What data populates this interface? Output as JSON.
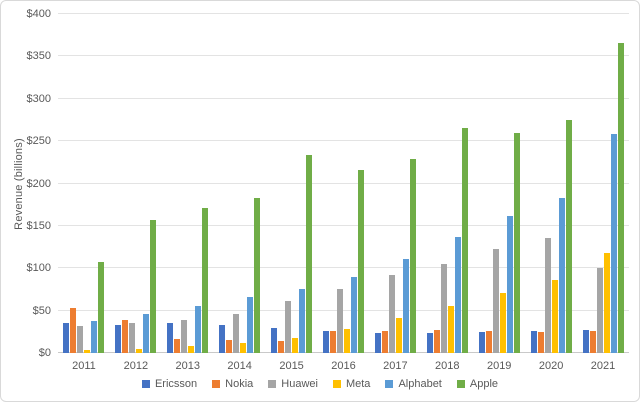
{
  "chart_data": {
    "type": "bar",
    "title": "",
    "ylabel": "Revenue (billions)",
    "xlabel": "",
    "categories": [
      "2011",
      "2012",
      "2013",
      "2014",
      "2015",
      "2016",
      "2017",
      "2018",
      "2019",
      "2020",
      "2021"
    ],
    "series": [
      {
        "name": "Ericsson",
        "color": "#4472C4",
        "values": [
          35,
          33,
          35,
          33,
          29,
          26,
          24,
          24,
          25,
          26,
          27
        ]
      },
      {
        "name": "Nokia",
        "color": "#ED7D31",
        "values": [
          53,
          39,
          16,
          15,
          14,
          26,
          26,
          27,
          26,
          25,
          26
        ]
      },
      {
        "name": "Huawei",
        "color": "#A5A5A5",
        "values": [
          32,
          35,
          39,
          46,
          61,
          75,
          92,
          105,
          123,
          136,
          100
        ]
      },
      {
        "name": "Meta",
        "color": "#FFC000",
        "values": [
          4,
          5,
          8,
          12,
          18,
          28,
          41,
          56,
          71,
          86,
          118
        ]
      },
      {
        "name": "Alphabet",
        "color": "#5B9BD5",
        "values": [
          38,
          46,
          56,
          66,
          75,
          90,
          111,
          137,
          162,
          183,
          258
        ]
      },
      {
        "name": "Apple",
        "color": "#70AD47",
        "values": [
          108,
          157,
          171,
          183,
          234,
          216,
          229,
          266,
          260,
          275,
          366
        ]
      }
    ],
    "ylim": [
      0,
      400
    ],
    "yticks": [
      0,
      50,
      100,
      150,
      200,
      250,
      300,
      350,
      400
    ],
    "ytick_labels": [
      "$0",
      "$50",
      "$100",
      "$150",
      "$200",
      "$250",
      "$300",
      "$350",
      "$400"
    ],
    "grid": true,
    "legend_position": "bottom",
    "colors": {
      "gridline": "#e3e3e3",
      "axis_line": "#c9c9c9",
      "text": "#595959",
      "background": "#ffffff"
    }
  }
}
